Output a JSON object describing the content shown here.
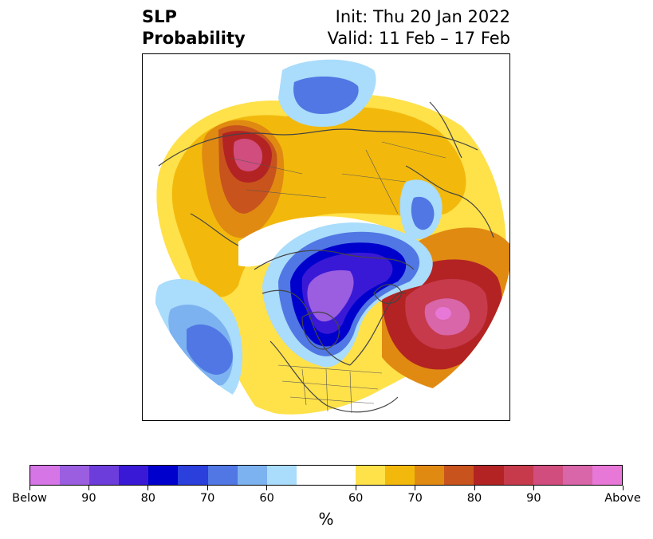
{
  "title": {
    "line1": "SLP",
    "line2": "Probability",
    "init": "Init: Thu 20 Jan 2022",
    "valid": "Valid: 11 Feb – 17 Feb"
  },
  "map": {
    "projection": "north-polar-stereographic",
    "field": "SLP probability",
    "features": [
      {
        "name": "below-normal-core-canada-arctic",
        "category": "Below",
        "max_probability": 90,
        "color": "#9b5ee0"
      },
      {
        "name": "below-normal-north-pacific",
        "category": "Below",
        "max_probability": 70,
        "color": "#5077e3"
      },
      {
        "name": "below-normal-siberia",
        "category": "Below",
        "max_probability": 70,
        "color": "#5077e3"
      },
      {
        "name": "above-normal-north-atlantic",
        "category": "Above",
        "max_probability": 90,
        "color": "#d8589f"
      },
      {
        "name": "above-normal-eastern-europe",
        "category": "Above",
        "max_probability": 90,
        "color": "#d8589f"
      },
      {
        "name": "above-normal-eurasia-band",
        "category": "Above",
        "max_probability": 60,
        "color": "#f2b90c"
      }
    ]
  },
  "colorbar": {
    "colors": [
      "#d676e6",
      "#9b5ee0",
      "#6d3ddc",
      "#3a19d6",
      "#0000cc",
      "#2a3fdc",
      "#5077e3",
      "#7cb2f0",
      "#aadcfb",
      "#ffffff",
      "#ffe14a",
      "#f2b90c",
      "#e08a12",
      "#c8531c",
      "#b32323",
      "#c63a4c",
      "#d14d7e",
      "#d866a8",
      "#e878d8"
    ],
    "tick_labels": [
      "Below",
      "90",
      "80",
      "70",
      "60",
      "60",
      "70",
      "80",
      "90",
      "Above"
    ],
    "unit": "%"
  }
}
